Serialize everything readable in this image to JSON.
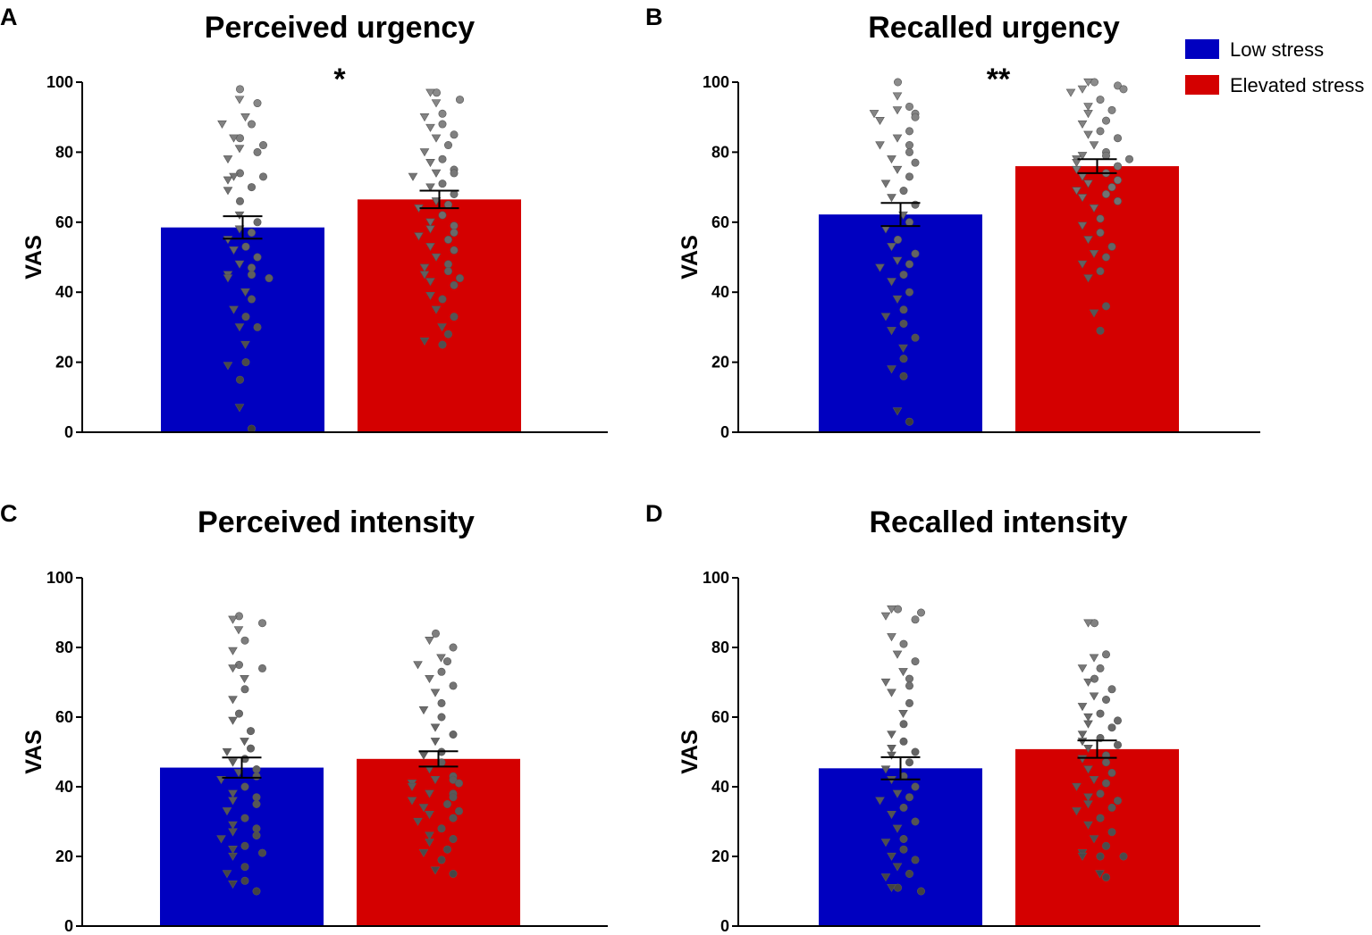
{
  "colors": {
    "low_stress": "#0000c0",
    "elevated_stress": "#d40000",
    "axis": "#000000",
    "point_light": "#8c8c8c",
    "point_dark": "#3a3a3a"
  },
  "legend": {
    "items": [
      {
        "label": "Low stress",
        "color": "#0000c0"
      },
      {
        "label": "Elevated stress",
        "color": "#d40000"
      }
    ]
  },
  "chart_data": [
    {
      "panel": "A",
      "type": "bar",
      "title": "Perceived urgency",
      "ylabel": "VAS",
      "ylim": [
        0,
        100
      ],
      "yticks": [
        "0",
        "20",
        "40",
        "60",
        "80",
        "100"
      ],
      "categories": [
        "Low stress",
        "Elevated stress"
      ],
      "means": [
        58.5,
        66.5
      ],
      "sem": [
        3.2,
        2.5
      ],
      "significance": "*",
      "points": [
        [
          98,
          95,
          94,
          90,
          88,
          88,
          84,
          84,
          82,
          81,
          80,
          78,
          74,
          73,
          73,
          72,
          70,
          69,
          66,
          62,
          60,
          58,
          57,
          55,
          53,
          52,
          50,
          48,
          47,
          45,
          45,
          44,
          44,
          40,
          38,
          35,
          33,
          30,
          30,
          25,
          20,
          19,
          15,
          7,
          1
        ],
        [
          97,
          97,
          95,
          94,
          91,
          90,
          88,
          87,
          85,
          84,
          82,
          80,
          78,
          77,
          75,
          74,
          74,
          73,
          71,
          70,
          68,
          66,
          65,
          64,
          62,
          60,
          59,
          58,
          57,
          56,
          55,
          53,
          52,
          50,
          48,
          47,
          46,
          45,
          44,
          43,
          42,
          39,
          38,
          35,
          33,
          30,
          28,
          26,
          25
        ]
      ]
    },
    {
      "panel": "B",
      "type": "bar",
      "title": "Recalled urgency",
      "ylabel": "VAS",
      "ylim": [
        0,
        100
      ],
      "yticks": [
        "0",
        "20",
        "40",
        "60",
        "80",
        "100"
      ],
      "categories": [
        "Low stress",
        "Elevated stress"
      ],
      "means": [
        62.2,
        76.0
      ],
      "sem": [
        3.3,
        2.0
      ],
      "significance": "**",
      "points": [
        [
          100,
          96,
          93,
          92,
          91,
          91,
          90,
          89,
          86,
          84,
          82,
          82,
          80,
          78,
          77,
          75,
          73,
          71,
          69,
          67,
          65,
          62,
          60,
          58,
          55,
          53,
          51,
          49,
          48,
          47,
          45,
          43,
          40,
          38,
          35,
          33,
          31,
          29,
          27,
          24,
          21,
          18,
          16,
          6,
          3
        ],
        [
          100,
          100,
          99,
          98,
          98,
          97,
          95,
          93,
          92,
          91,
          89,
          88,
          86,
          85,
          84,
          82,
          80,
          79,
          79,
          78,
          78,
          77,
          76,
          75,
          74,
          73,
          72,
          71,
          70,
          69,
          68,
          67,
          66,
          64,
          61,
          59,
          57,
          55,
          53,
          51,
          50,
          48,
          46,
          44,
          36,
          34,
          29
        ]
      ]
    },
    {
      "panel": "C",
      "type": "bar",
      "title": "Perceived intensity",
      "ylabel": "VAS",
      "ylim": [
        0,
        100
      ],
      "yticks": [
        "0",
        "20",
        "40",
        "60",
        "80",
        "100"
      ],
      "categories": [
        "Low stress",
        "Elevated stress"
      ],
      "means": [
        45.5,
        48.0
      ],
      "sem": [
        2.9,
        2.2
      ],
      "significance": "",
      "points": [
        [
          89,
          88,
          87,
          85,
          82,
          79,
          75,
          74,
          74,
          71,
          68,
          65,
          61,
          59,
          56,
          53,
          51,
          50,
          48,
          47,
          45,
          44,
          43,
          42,
          40,
          38,
          37,
          36,
          35,
          33,
          31,
          29,
          28,
          27,
          26,
          25,
          23,
          22,
          21,
          20,
          17,
          15,
          13,
          12,
          10
        ],
        [
          84,
          82,
          80,
          77,
          76,
          75,
          73,
          71,
          69,
          67,
          64,
          62,
          60,
          57,
          55,
          53,
          50,
          49,
          47,
          45,
          43,
          42,
          42,
          41,
          41,
          40,
          38,
          38,
          37,
          36,
          35,
          34,
          33,
          32,
          31,
          30,
          28,
          26,
          25,
          24,
          22,
          21,
          19,
          16,
          15
        ]
      ]
    },
    {
      "panel": "D",
      "type": "bar",
      "title": "Recalled intensity",
      "ylabel": "VAS",
      "ylim": [
        0,
        100
      ],
      "yticks": [
        "0",
        "20",
        "40",
        "60",
        "80",
        "100"
      ],
      "categories": [
        "Low stress",
        "Elevated stress"
      ],
      "means": [
        45.3,
        50.8
      ],
      "sem": [
        3.2,
        2.5
      ],
      "significance": "",
      "points": [
        [
          91,
          91,
          90,
          89,
          88,
          83,
          81,
          78,
          76,
          73,
          71,
          70,
          69,
          67,
          64,
          61,
          58,
          55,
          53,
          51,
          50,
          49,
          47,
          45,
          43,
          42,
          40,
          38,
          37,
          36,
          34,
          32,
          30,
          28,
          25,
          24,
          22,
          20,
          19,
          17,
          15,
          14,
          11,
          11,
          10
        ],
        [
          87,
          87,
          78,
          77,
          74,
          74,
          71,
          70,
          68,
          66,
          65,
          63,
          61,
          60,
          59,
          58,
          57,
          55,
          54,
          53,
          52,
          51,
          49,
          48,
          47,
          45,
          44,
          42,
          41,
          40,
          38,
          37,
          36,
          35,
          34,
          33,
          31,
          29,
          27,
          25,
          23,
          21,
          20,
          20,
          20,
          15,
          14
        ]
      ]
    }
  ]
}
